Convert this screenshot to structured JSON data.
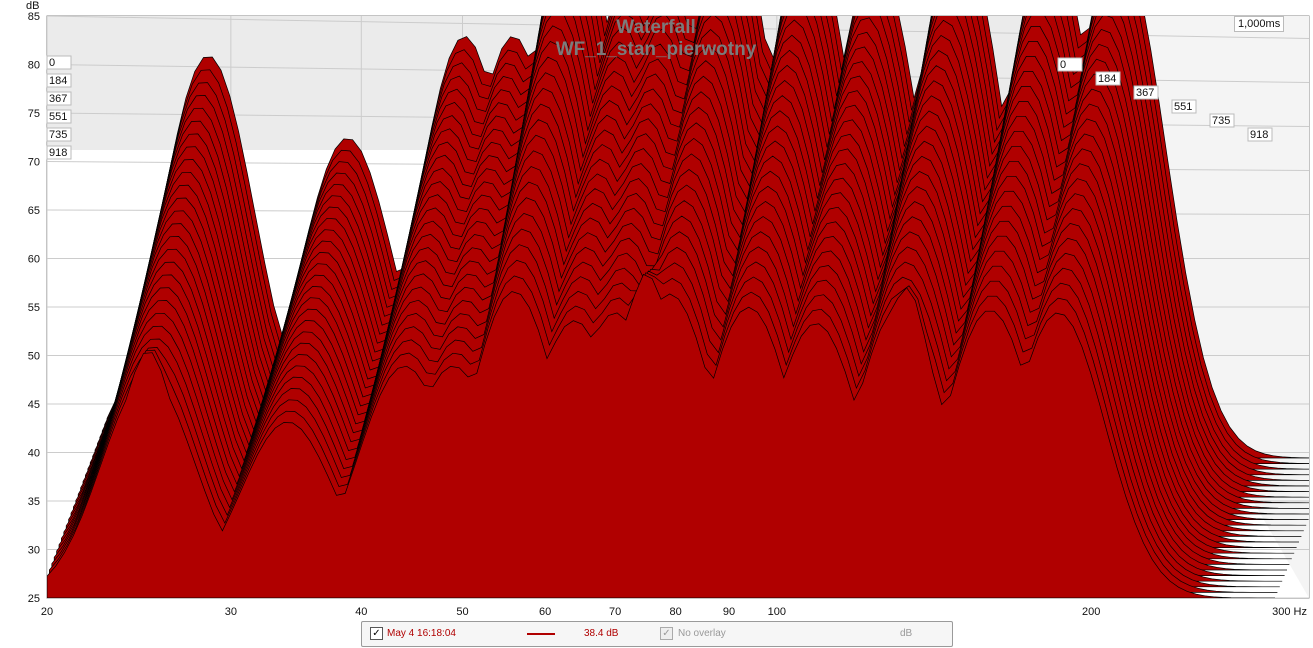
{
  "chart_data": {
    "type": "area",
    "title": "Waterfall",
    "subtitle": "WF_1_stan_pierwotny",
    "ylabel": "dB",
    "xunit": "Hz",
    "ylim": [
      25,
      85
    ],
    "xlim": [
      20,
      300
    ],
    "x_scale": "log",
    "x_ticks": [
      20,
      30,
      40,
      50,
      60,
      70,
      80,
      90,
      100,
      200
    ],
    "x_tick_labels": [
      "20",
      "30",
      "40",
      "50",
      "60",
      "70",
      "80",
      "90",
      "100",
      "200"
    ],
    "x_end_label": "300 Hz",
    "y_ticks": [
      25,
      30,
      35,
      40,
      45,
      50,
      55,
      60,
      65,
      70,
      75,
      80,
      85
    ],
    "time_window": "1,000ms",
    "time_slices_ms": [
      "0",
      "184",
      "367",
      "551",
      "735",
      "918"
    ],
    "front_peaks": [
      {
        "x": 25,
        "y": 50.5
      },
      {
        "x": 75,
        "y": 58.5
      },
      {
        "x": 104,
        "y": 47.5
      },
      {
        "x": 133,
        "y": 57
      },
      {
        "x": 183,
        "y": 53.5
      }
    ],
    "back_peaks": [
      {
        "x": 25,
        "y": 66.5
      },
      {
        "x": 34,
        "y": 58
      },
      {
        "x": 44,
        "y": 68.5
      },
      {
        "x": 49,
        "y": 68.5
      },
      {
        "x": 56,
        "y": 82.5
      },
      {
        "x": 64,
        "y": 77
      },
      {
        "x": 70,
        "y": 78.5
      },
      {
        "x": 79,
        "y": 82
      },
      {
        "x": 94,
        "y": 79.5
      },
      {
        "x": 109,
        "y": 76.5
      },
      {
        "x": 131,
        "y": 79.5
      },
      {
        "x": 160,
        "y": 79
      },
      {
        "x": 186,
        "y": 78.5
      }
    ],
    "series_color": "#b00000",
    "grid": true
  },
  "legend": {
    "entry_label": "May 4 16:18:04",
    "entry_value": "38.4 dB",
    "overlay_label": "No overlay",
    "overlay_unit": "dB",
    "check_mark": "✓"
  },
  "colors": {
    "fill": "#b00000",
    "outline": "#000000",
    "back_wall": "#ebebeb",
    "grid": "#cccccc"
  }
}
